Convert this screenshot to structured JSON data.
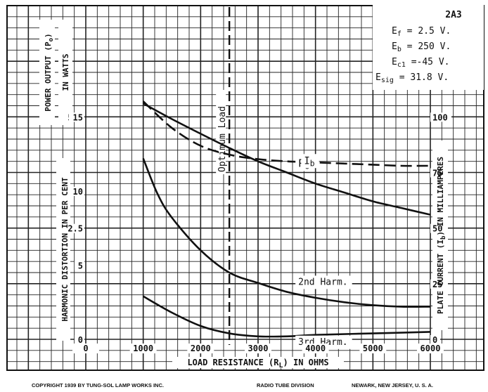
{
  "chart_data": {
    "type": "line",
    "tube": "2A3",
    "conditions": [
      {
        "main": "E",
        "sub": "f",
        "rest": " = 2.5 V."
      },
      {
        "main": "E",
        "sub": "b",
        "rest": " = 250 V."
      },
      {
        "main": "E",
        "sub": "c1",
        "rest": " =-45 V."
      },
      {
        "main": "E",
        "sub": "sig",
        "rest": " = 31.8 V."
      }
    ],
    "xlabel": {
      "pre": "LOAD RESISTANCE (R",
      "sub": "L",
      "post": ") IN OHMS"
    },
    "x_ticks": [
      0,
      1000,
      2000,
      3000,
      4000,
      5000,
      6000
    ],
    "xlim": [
      0,
      6000
    ],
    "axes": {
      "power": {
        "label": {
          "pre": "POWER OUTPUT (P",
          "sub": "o",
          "post": ")"
        },
        "label2": "IN WATTS",
        "ticks": [
          "2.5",
          "5.0"
        ],
        "tick_values": [
          2.5,
          5.0
        ],
        "ylim": [
          0,
          7.5
        ]
      },
      "distortion": {
        "label": "HARMONIC DISTORTION IN PER CENT",
        "ticks": [
          "0",
          "5",
          "10",
          "15"
        ],
        "tick_values": [
          0,
          5,
          10,
          15
        ],
        "ylim": [
          0,
          22.5
        ]
      },
      "current": {
        "label": {
          "pre": "PLATE CURRENT (I",
          "sub": "b",
          "post": ") IN MILLIAMPERES"
        },
        "ticks": [
          "0",
          "25",
          "50",
          "75",
          "100"
        ],
        "tick_values": [
          0,
          25,
          50,
          75,
          100
        ],
        "ylim": [
          0,
          150
        ]
      }
    },
    "optimum_load": {
      "label": "Optimum Load",
      "x": 2500
    },
    "series": [
      {
        "name": "P",
        "name_sub": "o",
        "axis": "power",
        "style": "solid",
        "x": [
          1000,
          1500,
          2000,
          2500,
          3000,
          3500,
          4000,
          4500,
          5000,
          5500,
          6000
        ],
        "values": [
          5.3,
          4.95,
          4.62,
          4.3,
          4.0,
          3.75,
          3.5,
          3.3,
          3.1,
          2.95,
          2.8
        ]
      },
      {
        "name": "I",
        "name_sub": "b",
        "axis": "current",
        "style": "dashed",
        "x": [
          1000,
          1500,
          2000,
          2500,
          3000,
          3500,
          4000,
          4500,
          5000,
          5500,
          6000
        ],
        "values": [
          107,
          95,
          87,
          83,
          81,
          80,
          79.5,
          79,
          78.5,
          78,
          78
        ]
      },
      {
        "name": "2nd Harm.",
        "axis": "distortion",
        "style": "solid",
        "x": [
          1000,
          1250,
          1500,
          2000,
          2500,
          3000,
          3500,
          4000,
          4500,
          5000,
          5500,
          6000
        ],
        "values": [
          12.2,
          9.8,
          8.2,
          6.0,
          4.5,
          3.8,
          3.2,
          2.8,
          2.5,
          2.3,
          2.2,
          2.2
        ]
      },
      {
        "name": "3rd Harm.",
        "axis": "distortion",
        "style": "solid",
        "x": [
          1000,
          1500,
          2000,
          2500,
          3000,
          3500,
          4000,
          5000,
          6000
        ],
        "values": [
          2.9,
          1.8,
          0.9,
          0.4,
          0.2,
          0.2,
          0.3,
          0.4,
          0.5
        ]
      }
    ]
  },
  "footer": {
    "copyright": "COPYRIGHT 1939 BY TUNG-SOL LAMP WORKS INC.",
    "division": "RADIO TUBE DIVISION",
    "location": "NEWARK, NEW JERSEY, U. S. A."
  }
}
